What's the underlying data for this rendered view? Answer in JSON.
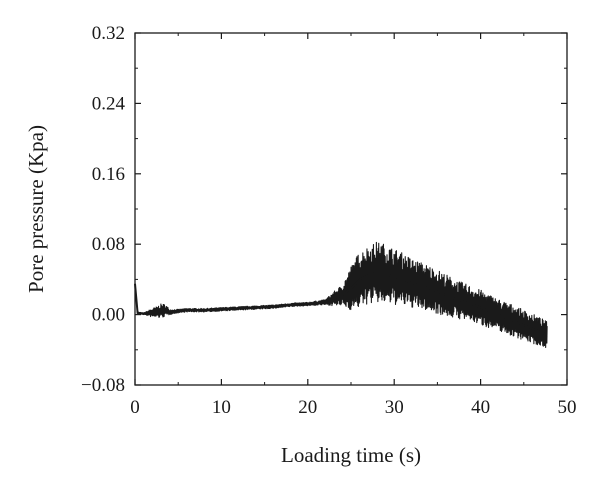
{
  "chart_data": {
    "type": "line",
    "title": "",
    "xlabel": "Loading time (s)",
    "ylabel": "Pore pressure (Kpa)",
    "xlim": [
      0,
      50
    ],
    "ylim": [
      -0.08,
      0.32
    ],
    "x_ticks": [
      0,
      10,
      20,
      30,
      40,
      50
    ],
    "x_tick_labels": [
      "0",
      "10",
      "20",
      "30",
      "40",
      "50"
    ],
    "y_ticks": [
      -0.08,
      0.0,
      0.08,
      0.16,
      0.24,
      0.32
    ],
    "y_tick_labels": [
      "−0.08",
      "0.00",
      "0.08",
      "0.16",
      "0.24",
      "0.32"
    ],
    "grid": false,
    "legend": "none",
    "series": [
      {
        "color": "#1a1a1a",
        "x": [
          0.0,
          0.3,
          1.0,
          2.0,
          2.5,
          3.0,
          3.5,
          4.0,
          5.0,
          6.0,
          8.0,
          10.0,
          12.0,
          14.0,
          16.0,
          18.0,
          20.0,
          22.0,
          23.0,
          24.0,
          25.0,
          26.0,
          27.0,
          28.0,
          29.0,
          30.0,
          31.0,
          32.0,
          33.0,
          34.0,
          35.0,
          36.0,
          37.0,
          38.0,
          39.0,
          40.0,
          41.0,
          42.0,
          43.0,
          44.0,
          45.0,
          46.0,
          47.0,
          47.7
        ],
        "y": [
          0.035,
          0.002,
          0.001,
          0.002,
          0.003,
          0.004,
          0.005,
          0.003,
          0.004,
          0.005,
          0.005,
          0.006,
          0.007,
          0.008,
          0.009,
          0.011,
          0.012,
          0.014,
          0.018,
          0.022,
          0.03,
          0.04,
          0.045,
          0.048,
          0.046,
          0.043,
          0.04,
          0.036,
          0.033,
          0.03,
          0.026,
          0.022,
          0.018,
          0.015,
          0.012,
          0.008,
          0.004,
          0.0,
          -0.004,
          -0.008,
          -0.012,
          -0.016,
          -0.02,
          -0.023
        ],
        "band_halfwidth": [
          0.002,
          0.001,
          0.001,
          0.005,
          0.006,
          0.008,
          0.007,
          0.003,
          0.002,
          0.002,
          0.002,
          0.002,
          0.002,
          0.002,
          0.002,
          0.002,
          0.002,
          0.003,
          0.008,
          0.012,
          0.025,
          0.032,
          0.033,
          0.035,
          0.034,
          0.032,
          0.03,
          0.028,
          0.027,
          0.026,
          0.025,
          0.024,
          0.022,
          0.021,
          0.02,
          0.02,
          0.019,
          0.018,
          0.018,
          0.018,
          0.017,
          0.017,
          0.016,
          0.015
        ]
      }
    ]
  }
}
